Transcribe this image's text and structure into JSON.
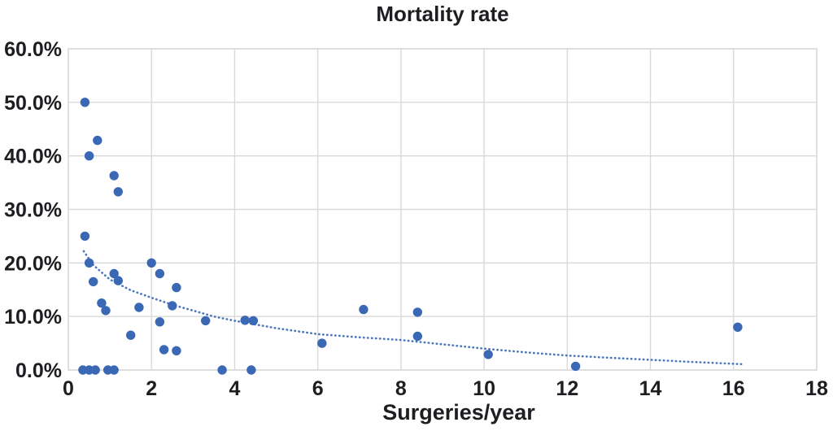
{
  "chart_data": {
    "type": "scatter",
    "title": "Mortality rate",
    "xlabel": "Surgeries/year",
    "ylabel": "",
    "xlim": [
      0,
      18
    ],
    "ylim": [
      0,
      60
    ],
    "grid": true,
    "legend": "none",
    "x_ticks": [
      {
        "v": 0,
        "label": "0"
      },
      {
        "v": 2,
        "label": "2"
      },
      {
        "v": 4,
        "label": "4"
      },
      {
        "v": 6,
        "label": "6"
      },
      {
        "v": 8,
        "label": "8"
      },
      {
        "v": 10,
        "label": "10"
      },
      {
        "v": 12,
        "label": "12"
      },
      {
        "v": 14,
        "label": "14"
      },
      {
        "v": 16,
        "label": "16"
      },
      {
        "v": 18,
        "label": "18"
      }
    ],
    "y_ticks": [
      {
        "v": 0,
        "label": "0.0%"
      },
      {
        "v": 10,
        "label": "10.0%"
      },
      {
        "v": 20,
        "label": "20.0%"
      },
      {
        "v": 30,
        "label": "30.0%"
      },
      {
        "v": 40,
        "label": "40.0%"
      },
      {
        "v": 50,
        "label": "50.0%"
      },
      {
        "v": 60,
        "label": "60.0%"
      }
    ],
    "points_unit": "x = surgeries per year, y = mortality rate in percent",
    "points": [
      [
        0.4,
        50.0
      ],
      [
        0.7,
        42.9
      ],
      [
        0.5,
        40.0
      ],
      [
        1.1,
        36.3
      ],
      [
        1.2,
        33.3
      ],
      [
        0.4,
        25.0
      ],
      [
        0.5,
        20.0
      ],
      [
        0.6,
        16.5
      ],
      [
        1.1,
        18.0
      ],
      [
        1.2,
        16.7
      ],
      [
        0.8,
        12.5
      ],
      [
        0.9,
        11.1
      ],
      [
        1.7,
        11.7
      ],
      [
        2.0,
        20.0
      ],
      [
        2.2,
        18.0
      ],
      [
        2.6,
        15.4
      ],
      [
        2.5,
        12.0
      ],
      [
        2.2,
        9.0
      ],
      [
        1.5,
        6.5
      ],
      [
        2.3,
        3.8
      ],
      [
        2.6,
        3.6
      ],
      [
        3.3,
        9.2
      ],
      [
        4.25,
        9.3
      ],
      [
        4.45,
        9.2
      ],
      [
        6.1,
        5.0
      ],
      [
        7.1,
        11.3
      ],
      [
        8.4,
        10.8
      ],
      [
        8.4,
        6.3
      ],
      [
        10.1,
        2.9
      ],
      [
        12.2,
        0.7
      ],
      [
        16.1,
        8.0
      ],
      [
        0.35,
        0.0
      ],
      [
        0.5,
        0.0
      ],
      [
        0.65,
        0.0
      ],
      [
        0.95,
        0.0
      ],
      [
        1.1,
        0.0
      ],
      [
        3.7,
        0.0
      ],
      [
        4.4,
        0.0
      ]
    ],
    "trendline": {
      "style": "dotted",
      "points": [
        [
          0.37,
          22.2
        ],
        [
          0.6,
          19.6
        ],
        [
          1.0,
          16.9
        ],
        [
          1.5,
          14.9
        ],
        [
          2.0,
          13.5
        ],
        [
          2.5,
          12.2
        ],
        [
          3.0,
          11.1
        ],
        [
          3.5,
          10.0
        ],
        [
          4.0,
          9.2
        ],
        [
          5.0,
          7.8
        ],
        [
          6.0,
          6.7
        ],
        [
          7.0,
          6.1
        ],
        [
          8.0,
          5.6
        ],
        [
          9.0,
          4.8
        ],
        [
          10.0,
          4.0
        ],
        [
          11.0,
          3.3
        ],
        [
          12.0,
          2.7
        ],
        [
          13.0,
          2.3
        ],
        [
          14.0,
          1.9
        ],
        [
          15.0,
          1.5
        ],
        [
          16.2,
          1.1
        ]
      ]
    },
    "colors": {
      "dot": "#3a68b4",
      "trend": "#4a76bd",
      "grid": "#d9d9d9",
      "text": "#1c1e21",
      "background": "#ffffff"
    }
  }
}
